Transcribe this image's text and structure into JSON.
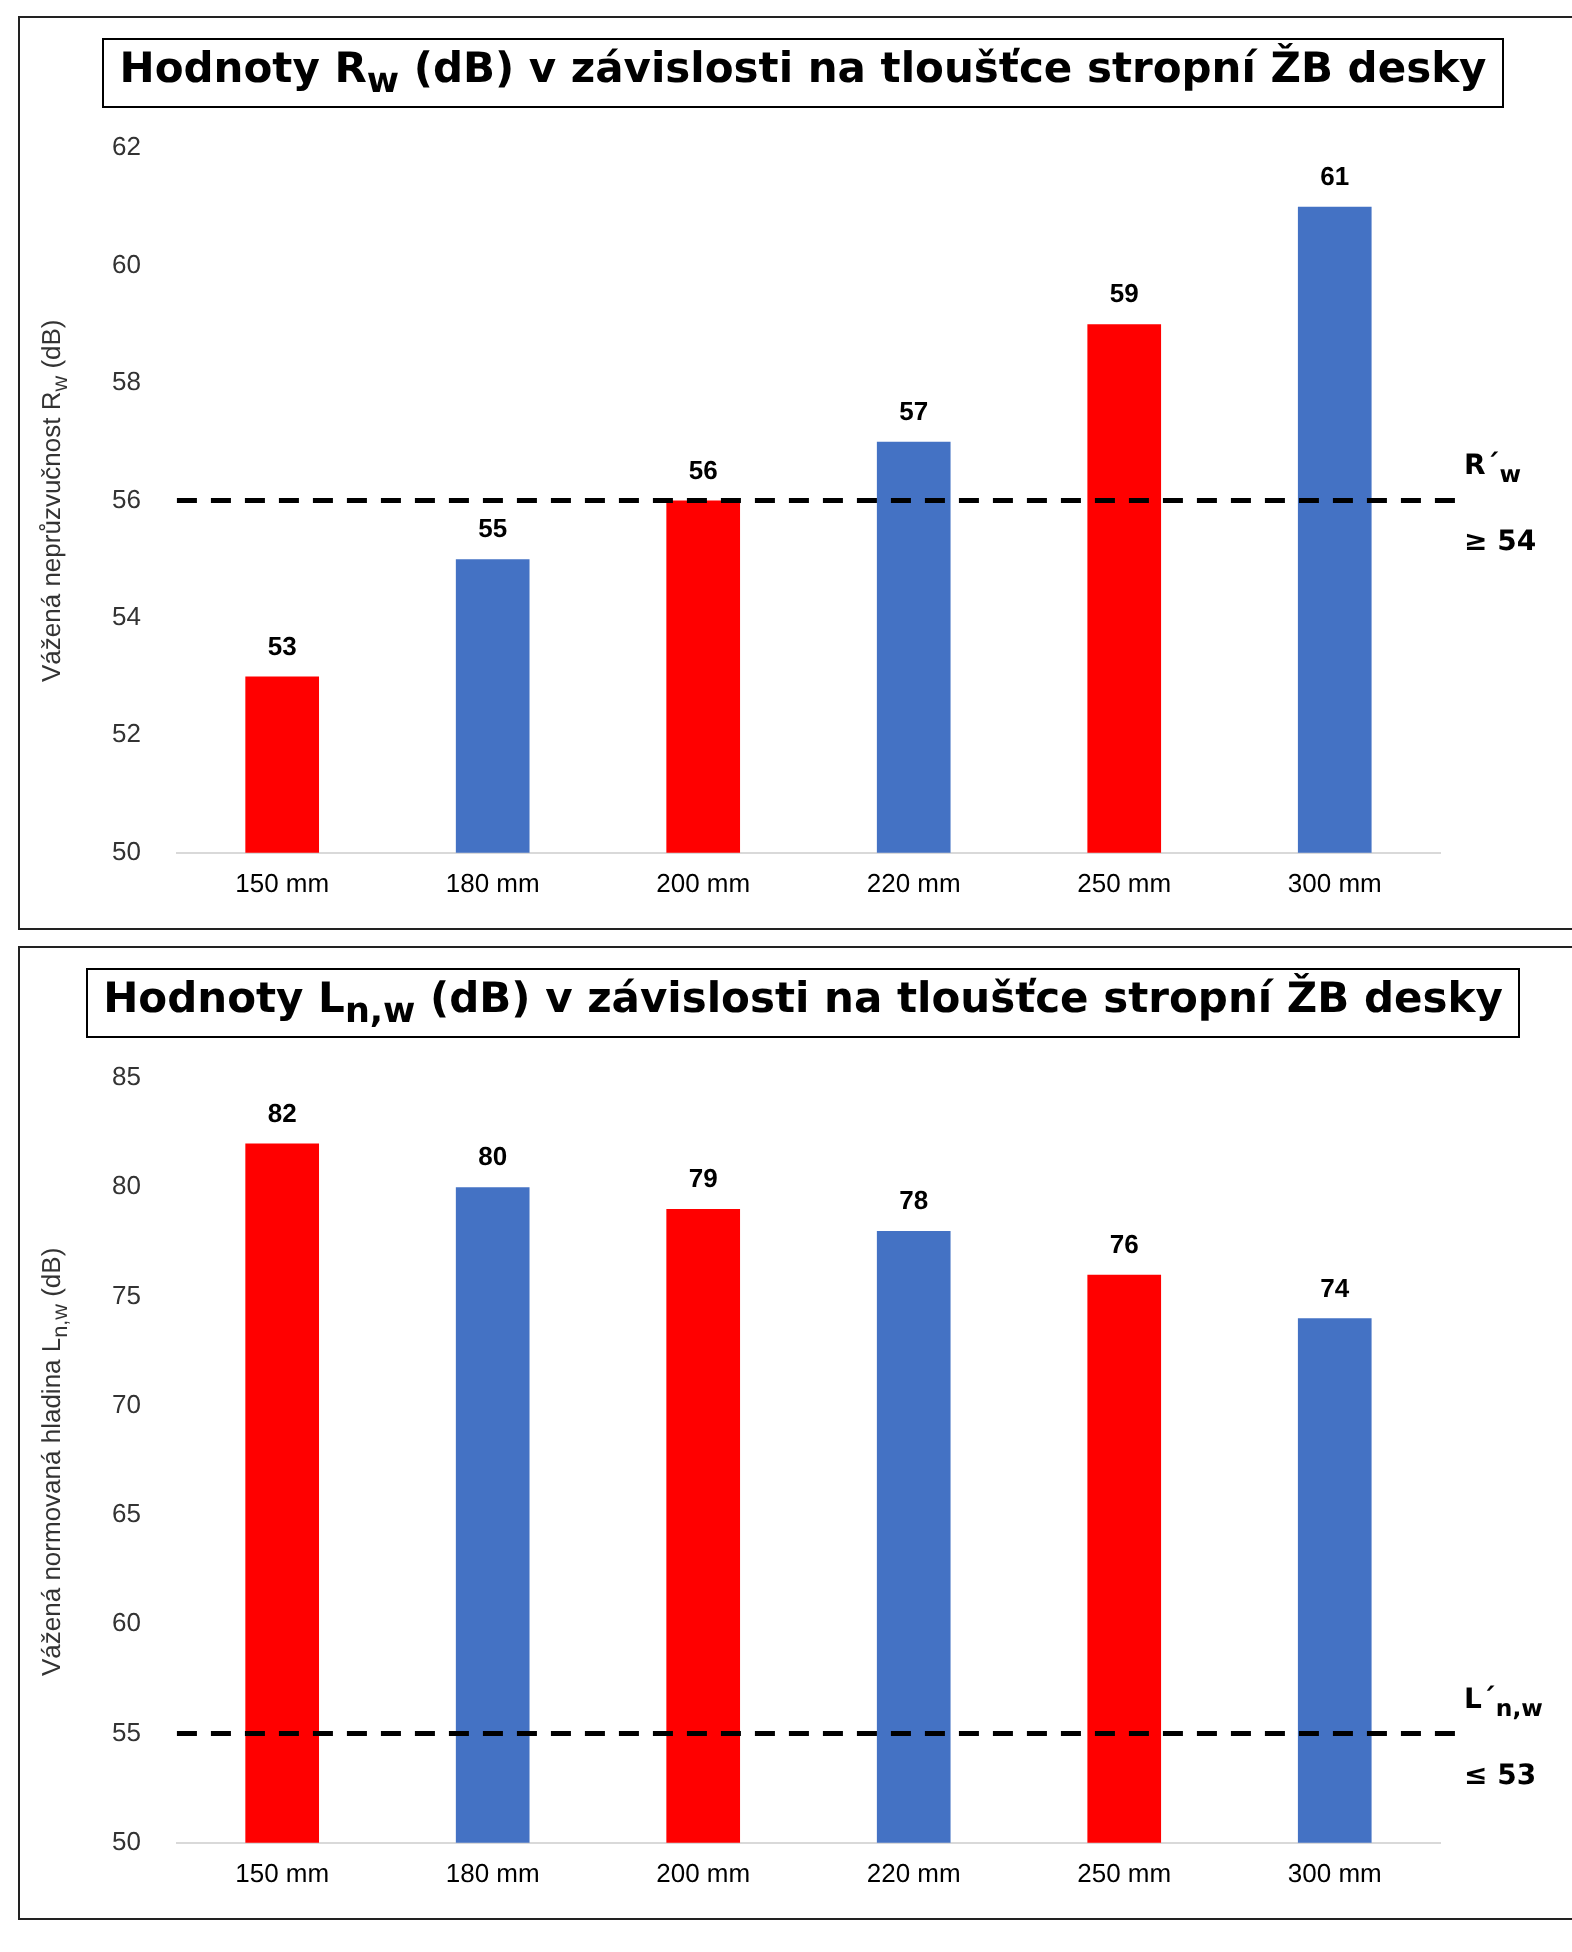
{
  "chart_data": [
    {
      "type": "bar",
      "title": "Hodnoty R$_{w}$ (dB) v závislosti na tloušťce stropní ŽB desky",
      "ylabel": "Vážená neprůzvučnost R$_{w}$ (dB)",
      "categories": [
        "150 mm",
        "180 mm",
        "200 mm",
        "220 mm",
        "250 mm",
        "300 mm"
      ],
      "values": [
        53,
        55,
        56,
        57,
        59,
        61
      ],
      "colors": [
        "#ff0000",
        "#4472c4",
        "#ff0000",
        "#4472c4",
        "#ff0000",
        "#4472c4"
      ],
      "ylim": [
        50,
        62
      ],
      "yticks": [
        50,
        52,
        54,
        56,
        58,
        60,
        62
      ],
      "grid": false,
      "legend": false,
      "data_labels": true,
      "ref_lines": [
        {
          "axis": "y",
          "value": 56,
          "label": "R´$_{w}$\n≥ 54",
          "color": "#000000",
          "line_style": "dashed"
        }
      ]
    },
    {
      "type": "bar",
      "title": "Hodnoty L$_{n,w}$ (dB) v závislosti na tloušťce stropní ŽB desky",
      "ylabel": "Vážená normovaná hladina L$_{n,w}$ (dB)",
      "categories": [
        "150 mm",
        "180 mm",
        "200 mm",
        "220 mm",
        "250 mm",
        "300 mm"
      ],
      "values": [
        82,
        80,
        79,
        78,
        76,
        74
      ],
      "colors": [
        "#ff0000",
        "#4472c4",
        "#ff0000",
        "#4472c4",
        "#ff0000",
        "#4472c4"
      ],
      "ylim": [
        50,
        85
      ],
      "yticks": [
        50,
        55,
        60,
        65,
        70,
        75,
        80,
        85
      ],
      "grid": false,
      "legend": false,
      "data_labels": true,
      "ref_lines": [
        {
          "axis": "y",
          "value": 55,
          "label": "L´$_{n,w}$\n≤ 53",
          "color": "#000000",
          "line_style": "dashed"
        }
      ]
    }
  ]
}
